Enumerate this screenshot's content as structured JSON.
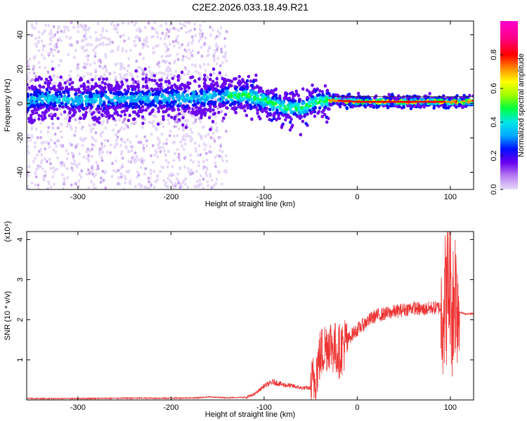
{
  "chart_data": [
    {
      "type": "heatmap",
      "title": "C2E2.2026.033.18.49.R21",
      "xlabel": "Height of straight line (km)",
      "ylabel": "Frequency (Hz)",
      "xlim": [
        -355,
        125
      ],
      "ylim": [
        -50,
        48
      ],
      "xticks": [
        -300,
        -200,
        -100,
        0,
        100
      ],
      "yticks": [
        -40,
        -20,
        0,
        20,
        40
      ],
      "grid": false,
      "colorbar": {
        "label": "Normalized spectral amplitude",
        "range": [
          0,
          1
        ],
        "ticks": [
          0.0,
          0.2,
          0.4,
          0.6,
          0.8
        ],
        "tick_labels": [
          "0.0",
          "0.2",
          "0.4",
          "0.6",
          "0.8"
        ],
        "colormap": [
          "#e8dcf8",
          "#b77ef0",
          "#6a00f0",
          "#0010ff",
          "#00aaff",
          "#00e6e6",
          "#00ff40",
          "#a0ff00",
          "#ffff00",
          "#ff8800",
          "#ff0000",
          "#ff0088",
          "#ff00cc"
        ]
      },
      "center_line": [
        {
          "x": -350,
          "y": 3
        },
        {
          "x": -300,
          "y": 2
        },
        {
          "x": -250,
          "y": 3
        },
        {
          "x": -200,
          "y": 3
        },
        {
          "x": -150,
          "y": 4
        },
        {
          "x": -120,
          "y": 5
        },
        {
          "x": -100,
          "y": 2
        },
        {
          "x": -80,
          "y": -2
        },
        {
          "x": -60,
          "y": -3
        },
        {
          "x": -45,
          "y": 1
        },
        {
          "x": -30,
          "y": 2
        },
        {
          "x": 0,
          "y": 1
        },
        {
          "x": 50,
          "y": 1
        },
        {
          "x": 100,
          "y": 1
        },
        {
          "x": 120,
          "y": 1
        }
      ]
    },
    {
      "type": "line",
      "title": "",
      "xlabel": "Height of straight line (km)",
      "ylabel": "SNR (10 * v/v)",
      "y_multiplier": "(x10⁴)",
      "xlim": [
        -355,
        125
      ],
      "ylim": [
        0,
        4.2
      ],
      "xticks": [
        -300,
        -200,
        -100,
        0,
        100
      ],
      "yticks": [
        1,
        2,
        3,
        4
      ],
      "series": [
        {
          "name": "SNR",
          "color": "#ee3333",
          "x": [
            -355,
            -300,
            -250,
            -200,
            -170,
            -160,
            -140,
            -120,
            -110,
            -100,
            -90,
            -80,
            -70,
            -60,
            -50,
            -45,
            -40,
            -35,
            -30,
            -25,
            -20,
            -15,
            -10,
            -5,
            0,
            10,
            20,
            30,
            40,
            50,
            60,
            70,
            80,
            90,
            95,
            100,
            102,
            105,
            108,
            110,
            115,
            125
          ],
          "y": [
            0.02,
            0.02,
            0.03,
            0.03,
            0.04,
            0.06,
            0.04,
            0.05,
            0.15,
            0.35,
            0.45,
            0.38,
            0.35,
            0.3,
            0.3,
            0.6,
            1.1,
            1.3,
            1.45,
            1.3,
            1.2,
            1.35,
            1.5,
            1.65,
            1.75,
            1.95,
            2.1,
            2.15,
            2.2,
            2.25,
            2.3,
            2.25,
            2.3,
            2.3,
            2.5,
            3.0,
            2.2,
            2.8,
            2.5,
            2.2,
            2.15,
            2.15
          ]
        }
      ]
    }
  ]
}
